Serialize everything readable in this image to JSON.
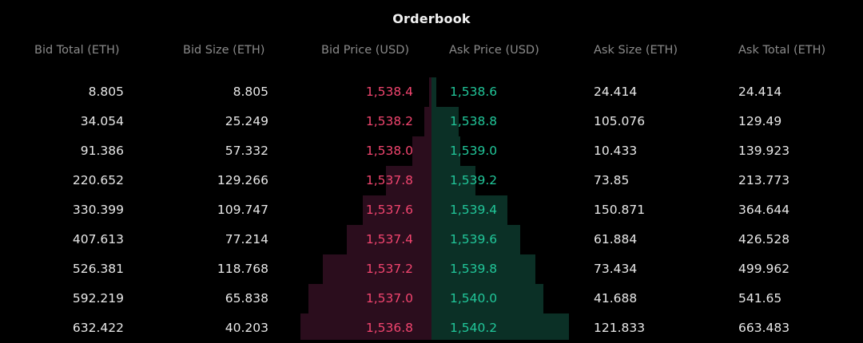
{
  "title": "Orderbook",
  "headers": {
    "bid_total": "Bid Total (ETH)",
    "bid_size": "Bid Size (ETH)",
    "bid_price": "Bid Price (USD)",
    "ask_price": "Ask Price (USD)",
    "ask_size": "Ask Size (ETH)",
    "ask_total": "Ask Total (ETH)"
  },
  "colors": {
    "bid_price": "#f2456f",
    "ask_price": "#21c79a",
    "bid_depth": "#2b0d1d",
    "ask_depth": "#0b3026"
  },
  "rows": [
    {
      "bid_total": "8.805",
      "bid_size": "8.805",
      "bid_price": "1,538.4",
      "ask_price": "1,538.6",
      "ask_size": "24.414",
      "ask_total": "24.414"
    },
    {
      "bid_total": "34.054",
      "bid_size": "25.249",
      "bid_price": "1,538.2",
      "ask_price": "1,538.8",
      "ask_size": "105.076",
      "ask_total": "129.49"
    },
    {
      "bid_total": "91.386",
      "bid_size": "57.332",
      "bid_price": "1,538.0",
      "ask_price": "1,539.0",
      "ask_size": "10.433",
      "ask_total": "139.923"
    },
    {
      "bid_total": "220.652",
      "bid_size": "129.266",
      "bid_price": "1,537.8",
      "ask_price": "1,539.2",
      "ask_size": "73.85",
      "ask_total": "213.773"
    },
    {
      "bid_total": "330.399",
      "bid_size": "109.747",
      "bid_price": "1,537.6",
      "ask_price": "1,539.4",
      "ask_size": "150.871",
      "ask_total": "364.644"
    },
    {
      "bid_total": "407.613",
      "bid_size": "77.214",
      "bid_price": "1,537.4",
      "ask_price": "1,539.6",
      "ask_size": "61.884",
      "ask_total": "426.528"
    },
    {
      "bid_total": "526.381",
      "bid_size": "118.768",
      "bid_price": "1,537.2",
      "ask_price": "1,539.8",
      "ask_size": "73.434",
      "ask_total": "499.962"
    },
    {
      "bid_total": "592.219",
      "bid_size": "65.838",
      "bid_price": "1,537.0",
      "ask_price": "1,540.0",
      "ask_size": "41.688",
      "ask_total": "541.65"
    },
    {
      "bid_total": "632.422",
      "bid_size": "40.203",
      "bid_price": "1,536.8",
      "ask_price": "1,540.2",
      "ask_size": "121.833",
      "ask_total": "663.483"
    }
  ]
}
